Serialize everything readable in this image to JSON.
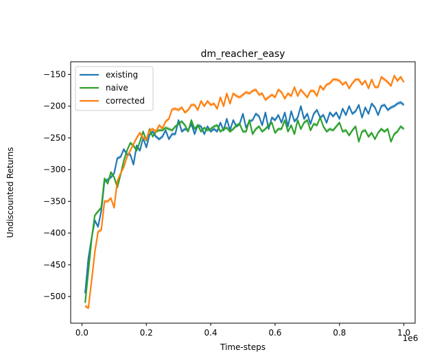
{
  "chart_data": {
    "type": "line",
    "title": "dm_reacher_easy",
    "xlabel": "Time-steps",
    "ylabel": "Undiscounted Returns",
    "x_offset_label": "1e6",
    "xlim": [
      -0.035,
      1.035
    ],
    "ylim": [
      -542,
      -130
    ],
    "x_ticks": [
      0.0,
      0.2,
      0.4,
      0.6,
      0.8,
      1.0
    ],
    "x_tick_labels": [
      "0.0",
      "0.2",
      "0.4",
      "0.6",
      "0.8",
      "1.0"
    ],
    "y_ticks": [
      -500,
      -450,
      -400,
      -350,
      -300,
      -250,
      -200,
      -150
    ],
    "y_tick_labels": [
      "−500",
      "−450",
      "−400",
      "−350",
      "−300",
      "−250",
      "−200",
      "−150"
    ],
    "grid": false,
    "legend_position": "top-left",
    "x": [
      0.01,
      0.02,
      0.03,
      0.04,
      0.05,
      0.06,
      0.07,
      0.08,
      0.09,
      0.1,
      0.11,
      0.12,
      0.13,
      0.14,
      0.15,
      0.16,
      0.17,
      0.18,
      0.19,
      0.2,
      0.21,
      0.22,
      0.23,
      0.24,
      0.25,
      0.26,
      0.27,
      0.28,
      0.29,
      0.3,
      0.31,
      0.32,
      0.33,
      0.34,
      0.35,
      0.36,
      0.37,
      0.38,
      0.39,
      0.4,
      0.41,
      0.42,
      0.43,
      0.44,
      0.45,
      0.46,
      0.47,
      0.48,
      0.49,
      0.5,
      0.51,
      0.52,
      0.53,
      0.54,
      0.55,
      0.56,
      0.57,
      0.58,
      0.59,
      0.6,
      0.61,
      0.62,
      0.63,
      0.64,
      0.65,
      0.66,
      0.67,
      0.68,
      0.69,
      0.7,
      0.71,
      0.72,
      0.73,
      0.74,
      0.75,
      0.76,
      0.77,
      0.78,
      0.79,
      0.8,
      0.81,
      0.82,
      0.83,
      0.84,
      0.85,
      0.86,
      0.87,
      0.88,
      0.89,
      0.9,
      0.91,
      0.92,
      0.93,
      0.94,
      0.95,
      0.96,
      0.97,
      0.98,
      0.99,
      1.0
    ],
    "series": [
      {
        "name": "existing",
        "color": "#1f77b4",
        "values": [
          -495,
          -440,
          -408,
          -380,
          -390,
          -365,
          -318,
          -316,
          -312,
          -306,
          -282,
          -280,
          -268,
          -276,
          -276,
          -292,
          -262,
          -270,
          -250,
          -265,
          -245,
          -240,
          -248,
          -252,
          -248,
          -238,
          -252,
          -244,
          -244,
          -222,
          -240,
          -236,
          -238,
          -228,
          -244,
          -230,
          -232,
          -244,
          -232,
          -240,
          -236,
          -240,
          -226,
          -238,
          -220,
          -238,
          -222,
          -232,
          -228,
          -212,
          -234,
          -224,
          -222,
          -212,
          -216,
          -230,
          -210,
          -236,
          -218,
          -222,
          -214,
          -226,
          -210,
          -232,
          -208,
          -224,
          -218,
          -200,
          -220,
          -212,
          -228,
          -212,
          -206,
          -218,
          -214,
          -226,
          -210,
          -216,
          -210,
          -220,
          -204,
          -214,
          -200,
          -212,
          -208,
          -198,
          -218,
          -202,
          -212,
          -196,
          -202,
          -214,
          -200,
          -198,
          -206,
          -202,
          -200,
          -196,
          -194,
          -198
        ]
      },
      {
        "name": "naive",
        "color": "#2ca02c",
        "values": [
          -510,
          -460,
          -410,
          -372,
          -366,
          -360,
          -314,
          -322,
          -304,
          -312,
          -328,
          -308,
          -286,
          -270,
          -258,
          -262,
          -270,
          -256,
          -240,
          -254,
          -236,
          -248,
          -240,
          -238,
          -238,
          -234,
          -236,
          -238,
          -232,
          -228,
          -224,
          -230,
          -240,
          -222,
          -236,
          -230,
          -240,
          -234,
          -238,
          -236,
          -232,
          -230,
          -240,
          -236,
          -234,
          -240,
          -236,
          -230,
          -228,
          -240,
          -240,
          -222,
          -244,
          -236,
          -232,
          -240,
          -236,
          -230,
          -226,
          -242,
          -236,
          -236,
          -222,
          -240,
          -230,
          -244,
          -222,
          -236,
          -226,
          -222,
          -238,
          -228,
          -230,
          -218,
          -232,
          -240,
          -236,
          -238,
          -232,
          -226,
          -240,
          -238,
          -246,
          -238,
          -232,
          -256,
          -240,
          -238,
          -248,
          -242,
          -252,
          -242,
          -236,
          -240,
          -236,
          -256,
          -244,
          -240,
          -232,
          -236
        ]
      },
      {
        "name": "corrected",
        "color": "#ff7f0e",
        "values": [
          -515,
          -518,
          -475,
          -430,
          -398,
          -395,
          -350,
          -350,
          -345,
          -360,
          -318,
          -306,
          -296,
          -280,
          -270,
          -260,
          -250,
          -242,
          -250,
          -252,
          -238,
          -236,
          -240,
          -230,
          -235,
          -224,
          -220,
          -205,
          -204,
          -206,
          -202,
          -210,
          -206,
          -198,
          -198,
          -206,
          -192,
          -200,
          -192,
          -198,
          -196,
          -204,
          -186,
          -200,
          -180,
          -196,
          -180,
          -184,
          -186,
          -182,
          -178,
          -180,
          -176,
          -174,
          -182,
          -180,
          -190,
          -186,
          -182,
          -186,
          -174,
          -178,
          -188,
          -180,
          -184,
          -170,
          -184,
          -174,
          -180,
          -186,
          -176,
          -176,
          -184,
          -168,
          -174,
          -166,
          -164,
          -158,
          -158,
          -160,
          -166,
          -162,
          -172,
          -164,
          -158,
          -158,
          -166,
          -160,
          -172,
          -158,
          -170,
          -170,
          -154,
          -158,
          -162,
          -168,
          -152,
          -160,
          -154,
          -162
        ]
      }
    ]
  }
}
